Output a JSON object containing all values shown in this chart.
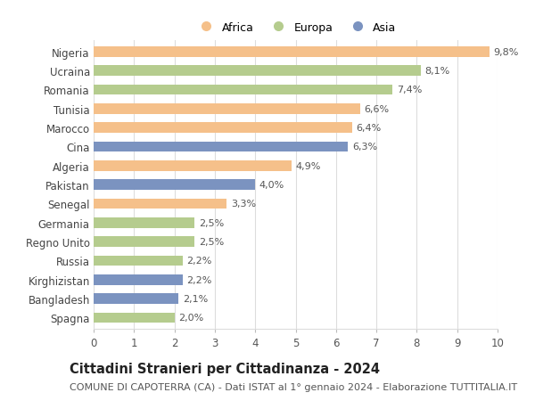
{
  "categories": [
    "Nigeria",
    "Ucraina",
    "Romania",
    "Tunisia",
    "Marocco",
    "Cina",
    "Algeria",
    "Pakistan",
    "Senegal",
    "Germania",
    "Regno Unito",
    "Russia",
    "Kirghizistan",
    "Bangladesh",
    "Spagna"
  ],
  "values": [
    9.8,
    8.1,
    7.4,
    6.6,
    6.4,
    6.3,
    4.9,
    4.0,
    3.3,
    2.5,
    2.5,
    2.2,
    2.2,
    2.1,
    2.0
  ],
  "labels": [
    "9,8%",
    "8,1%",
    "7,4%",
    "6,6%",
    "6,4%",
    "6,3%",
    "4,9%",
    "4,0%",
    "3,3%",
    "2,5%",
    "2,5%",
    "2,2%",
    "2,2%",
    "2,1%",
    "2,0%"
  ],
  "continents": [
    "Africa",
    "Europa",
    "Europa",
    "Africa",
    "Africa",
    "Asia",
    "Africa",
    "Asia",
    "Africa",
    "Europa",
    "Europa",
    "Europa",
    "Asia",
    "Asia",
    "Europa"
  ],
  "colors": {
    "Africa": "#F5C08A",
    "Europa": "#B5CC8E",
    "Asia": "#7B93C0"
  },
  "legend_order": [
    "Africa",
    "Europa",
    "Asia"
  ],
  "title": "Cittadini Stranieri per Cittadinanza - 2024",
  "subtitle": "COMUNE DI CAPOTERRA (CA) - Dati ISTAT al 1° gennaio 2024 - Elaborazione TUTTITALIA.IT",
  "xlim": [
    0,
    10
  ],
  "xticks": [
    0,
    1,
    2,
    3,
    4,
    5,
    6,
    7,
    8,
    9,
    10
  ],
  "background_color": "#ffffff",
  "grid_color": "#dddddd",
  "bar_height": 0.55,
  "label_fontsize": 8.0,
  "title_fontsize": 10.5,
  "subtitle_fontsize": 8.0,
  "ytick_fontsize": 8.5,
  "xtick_fontsize": 8.5
}
